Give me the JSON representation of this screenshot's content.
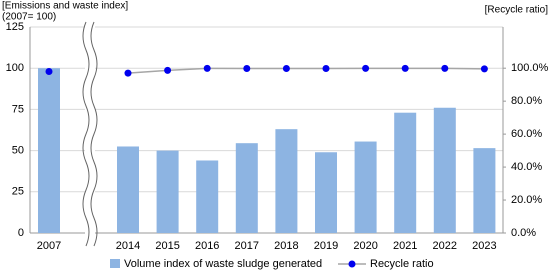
{
  "chart_data": {
    "type": "bar-line",
    "y_axis_title": "[Emissions and waste index]",
    "y_axis_subtitle": "(2007= 100)",
    "y2_axis_title": "[Recycle ratio]",
    "categories": [
      "2007",
      "2014",
      "2015",
      "2016",
      "2017",
      "2018",
      "2019",
      "2020",
      "2021",
      "2022",
      "2023"
    ],
    "series": [
      {
        "name": "Volume index of waste sludge generated",
        "type": "bar",
        "color": "#8db4e2",
        "values": [
          100,
          52.5,
          50,
          44,
          54.5,
          63,
          49,
          55.5,
          73,
          76,
          51.5
        ]
      },
      {
        "name": "Recycle ratio",
        "type": "line",
        "axis": "y2",
        "color": "#0000ee",
        "line_color": "#a6a6a6",
        "values": [
          98,
          97,
          98.7,
          99.9,
          99.8,
          99.8,
          99.8,
          99.9,
          99.9,
          99.9,
          99.6
        ]
      }
    ],
    "ylim": [
      0,
      125
    ],
    "yticks": [
      0,
      25,
      50,
      75,
      100,
      125
    ],
    "y2lim": [
      0,
      125
    ],
    "y2ticks": [
      {
        "value": 0,
        "label": "0.0%"
      },
      {
        "value": 20,
        "label": "20.0%"
      },
      {
        "value": 40,
        "label": "40.0%"
      },
      {
        "value": 60,
        "label": "60.0%"
      },
      {
        "value": 80,
        "label": "80.0%"
      },
      {
        "value": 100,
        "label": "100.0%"
      }
    ],
    "grid": true
  }
}
